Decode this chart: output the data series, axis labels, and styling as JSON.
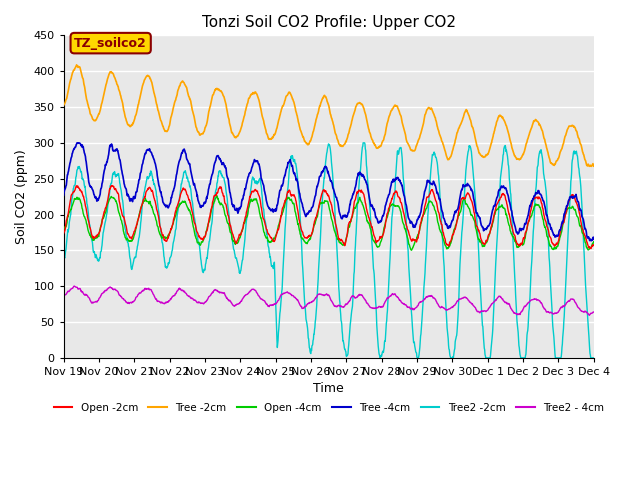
{
  "title": "Tonzi Soil CO2 Profile: Upper CO2",
  "ylabel": "Soil CO2 (ppm)",
  "xlabel": "Time",
  "annotation_text": "TZ_soilco2",
  "annotation_color": "#8B0000",
  "annotation_bg": "#FFD700",
  "annotation_border": "#8B0000",
  "ylim": [
    0,
    450
  ],
  "legend": [
    {
      "label": "Open -2cm",
      "color": "#FF0000"
    },
    {
      "label": "Tree -2cm",
      "color": "#FFA500"
    },
    {
      "label": "Open -4cm",
      "color": "#00CC00"
    },
    {
      "label": "Tree -4cm",
      "color": "#0000CC"
    },
    {
      "label": "Tree2 -2cm",
      "color": "#00CCCC"
    },
    {
      "label": "Tree2 - 4cm",
      "color": "#CC00CC"
    }
  ],
  "xtick_labels": [
    "Nov 19",
    "Nov 20",
    "Nov 21",
    "Nov 22",
    "Nov 23",
    "Nov 24",
    "Nov 25",
    "Nov 26",
    "Nov 27",
    "Nov 28",
    "Nov 29",
    "Nov 30",
    "Dec 1",
    "Dec 2",
    "Dec 3",
    "Dec 4"
  ],
  "background_color": "#FFFFFF",
  "plot_bg_color": "#E8E8E8",
  "grid_color": "#FFFFFF",
  "title_fontsize": 11,
  "label_fontsize": 9,
  "tick_fontsize": 8
}
